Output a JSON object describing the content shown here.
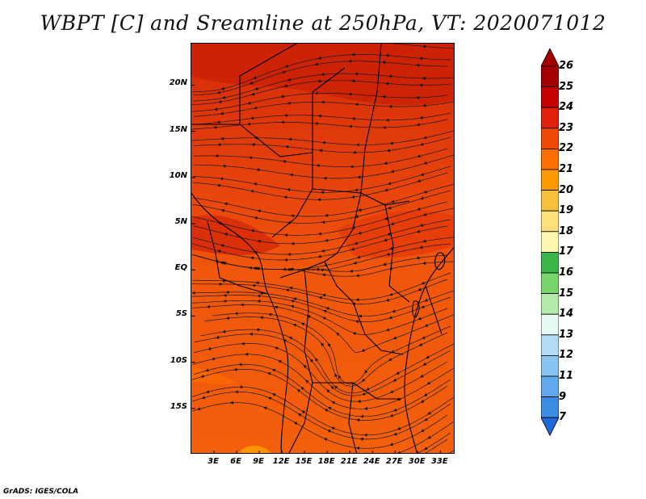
{
  "title": "WBPT [C] and Sreamline at 250hPa, VT: 2020071012",
  "credit": "GrADS: IGES/COLA",
  "map": {
    "lat_labels": [
      {
        "label": "20N",
        "lat": 20
      },
      {
        "label": "15N",
        "lat": 15
      },
      {
        "label": "10N",
        "lat": 10
      },
      {
        "label": "5N",
        "lat": 5
      },
      {
        "label": "EQ",
        "lat": 0
      },
      {
        "label": "5S",
        "lat": -5
      },
      {
        "label": "10S",
        "lat": -10
      },
      {
        "label": "15S",
        "lat": -15
      }
    ],
    "lon_labels": [
      {
        "label": "3E",
        "lon": 3
      },
      {
        "label": "6E",
        "lon": 6
      },
      {
        "label": "9E",
        "lon": 9
      },
      {
        "label": "12E",
        "lon": 12
      },
      {
        "label": "15E",
        "lon": 15
      },
      {
        "label": "18E",
        "lon": 18
      },
      {
        "label": "21E",
        "lon": 21
      },
      {
        "label": "24E",
        "lon": 24
      },
      {
        "label": "27E",
        "lon": 27
      },
      {
        "label": "30E",
        "lon": 30
      },
      {
        "label": "33E",
        "lon": 33
      }
    ],
    "lon_range": [
      0,
      35
    ],
    "lat_range": [
      -20,
      24.5
    ]
  },
  "colorbar": {
    "levels": [
      {
        "label": "26",
        "color": "#a50000"
      },
      {
        "label": "25",
        "color": "#c40000"
      },
      {
        "label": "24",
        "color": "#e0200a"
      },
      {
        "label": "23",
        "color": "#f04a0a"
      },
      {
        "label": "22",
        "color": "#ff6e00"
      },
      {
        "label": "21",
        "color": "#ff9a00"
      },
      {
        "label": "20",
        "color": "#f8bf3a"
      },
      {
        "label": "19",
        "color": "#fde07a"
      },
      {
        "label": "18",
        "color": "#fff6b0"
      },
      {
        "label": "17",
        "color": "#3cb64a"
      },
      {
        "label": "16",
        "color": "#78d46c"
      },
      {
        "label": "15",
        "color": "#b4ebaa"
      },
      {
        "label": "14",
        "color": "#e6f8f2"
      },
      {
        "label": "13",
        "color": "#b4dcf6"
      },
      {
        "label": "12",
        "color": "#8ac4f2"
      },
      {
        "label": "11",
        "color": "#62a8ee"
      },
      {
        "label": "9",
        "color": "#3c8ce4"
      },
      {
        "label": "7",
        "color": "#2068d8"
      }
    ]
  }
}
